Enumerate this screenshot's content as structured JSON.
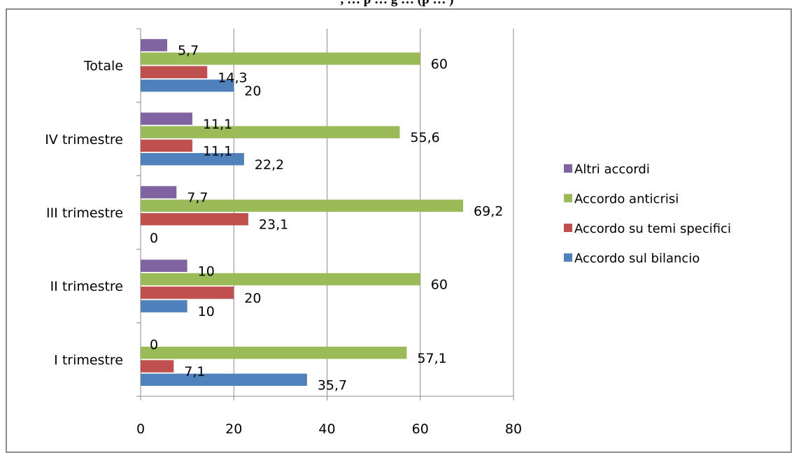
{
  "chart_data": {
    "type": "bar",
    "orientation": "horizontal",
    "title": ", … p … g … (p … )",
    "categories": [
      "Totale",
      "IV trimestre",
      "III trimestre",
      "II trimestre",
      "I trimestre"
    ],
    "series": [
      {
        "name": "Altri accordi",
        "color": "#8064a2",
        "values": [
          5.7,
          11.1,
          7.7,
          10,
          0
        ],
        "labels": [
          "5,7",
          "11,1",
          "7,7",
          "10",
          "0"
        ]
      },
      {
        "name": "Accordo anticrisi",
        "color": "#9bbb59",
        "values": [
          60,
          55.6,
          69.2,
          60,
          57.1
        ],
        "labels": [
          "60",
          "55,6",
          "69,2",
          "60",
          "57,1"
        ]
      },
      {
        "name": "Accordo su temi specifici",
        "color": "#c0504d",
        "values": [
          14.3,
          11.1,
          23.1,
          20,
          7.1
        ],
        "labels": [
          "14,3",
          "11,1",
          "23,1",
          "20",
          "7,1"
        ]
      },
      {
        "name": "Accordo sul bilancio",
        "color": "#4f81bd",
        "values": [
          20,
          22.2,
          0,
          10,
          35.7
        ],
        "labels": [
          "20",
          "22,2",
          "0",
          "10",
          "35,7"
        ]
      }
    ],
    "x_ticks": [
      "0",
      "20",
      "40",
      "60",
      "80"
    ],
    "xlim": [
      0,
      80
    ],
    "grid": true,
    "legend": "right"
  }
}
